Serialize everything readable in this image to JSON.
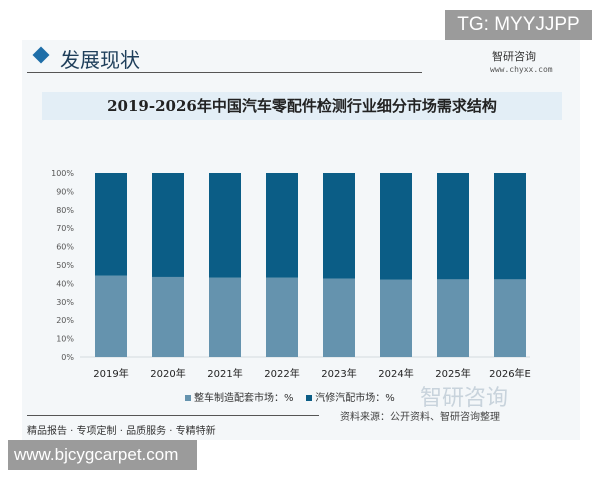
{
  "header": {
    "section_title": "发展现状",
    "brand": "智研咨询",
    "brand_url": "www.chyxx.com"
  },
  "badge_top": "TG: MYYJJPP",
  "badge_bottom": "www.bjcygcarpet.com",
  "footer": {
    "slogan": "精品报告 · 专项定制 · 品质服务 · 专精特新",
    "source": "资料来源：公开资料、智研咨询整理"
  },
  "chart_data": {
    "type": "bar",
    "stacked": true,
    "title": "2019-2026年中国汽车零配件检测行业细分市场需求结构",
    "categories": [
      "2019年",
      "2020年",
      "2021年",
      "2022年",
      "2023年",
      "2024年",
      "2025年",
      "2026年E"
    ],
    "series": [
      {
        "name": "整车制造配套市场：%",
        "color": "#6593ae",
        "values": [
          44.2,
          43.5,
          43.1,
          43.1,
          42.6,
          42.0,
          42.2,
          42.2
        ]
      },
      {
        "name": "汽修汽配市场：%",
        "color": "#0b5d86",
        "values": [
          55.8,
          56.5,
          56.9,
          56.9,
          57.4,
          58.0,
          57.8,
          57.8
        ]
      }
    ],
    "ylim": [
      0,
      100
    ],
    "yticks": [
      "0%",
      "10%",
      "20%",
      "30%",
      "40%",
      "50%",
      "60%",
      "70%",
      "80%",
      "90%",
      "100%"
    ],
    "legend": "bottom",
    "grid": false
  }
}
